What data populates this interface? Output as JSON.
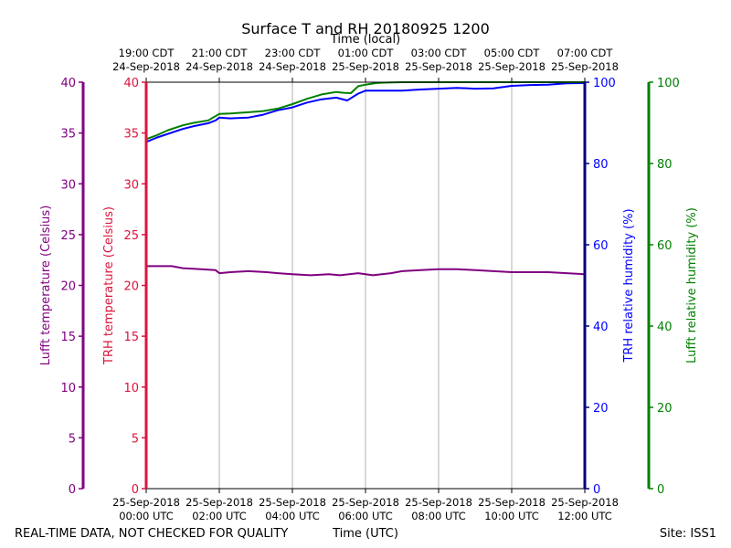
{
  "title": "Surface T and RH 20180925 1200",
  "footer": {
    "left": "REAL-TIME DATA, NOT CHECKED FOR QUALITY",
    "center": "Time (UTC)",
    "right": "Site: ISS1"
  },
  "colors": {
    "lufft_temp": "#800080",
    "trh_temp": "#dc143c",
    "trh_rh": "#0000ff",
    "lufft_rh": "#008000",
    "axis_dark": "#000080",
    "grid": "#b0b0b0"
  },
  "chart_data": {
    "type": "line",
    "title": "Surface T and RH 20180925 1200",
    "x_range_utc_hours": [
      0,
      12
    ],
    "top_axis_label": "Time (local)",
    "bottom_axis_label": "Time (UTC)",
    "top_ticks": [
      {
        "t": 0,
        "line1": "19:00 CDT",
        "line2": "24-Sep-2018"
      },
      {
        "t": 2,
        "line1": "21:00 CDT",
        "line2": "24-Sep-2018"
      },
      {
        "t": 4,
        "line1": "23:00 CDT",
        "line2": "24-Sep-2018"
      },
      {
        "t": 6,
        "line1": "01:00 CDT",
        "line2": "25-Sep-2018"
      },
      {
        "t": 8,
        "line1": "03:00 CDT",
        "line2": "25-Sep-2018"
      },
      {
        "t": 10,
        "line1": "05:00 CDT",
        "line2": "25-Sep-2018"
      },
      {
        "t": 12,
        "line1": "07:00 CDT",
        "line2": "25-Sep-2018"
      }
    ],
    "bottom_ticks": [
      {
        "t": 0,
        "line1": "25-Sep-2018",
        "line2": "00:00 UTC"
      },
      {
        "t": 2,
        "line1": "25-Sep-2018",
        "line2": "02:00 UTC"
      },
      {
        "t": 4,
        "line1": "25-Sep-2018",
        "line2": "04:00 UTC"
      },
      {
        "t": 6,
        "line1": "25-Sep-2018",
        "line2": "06:00 UTC"
      },
      {
        "t": 8,
        "line1": "25-Sep-2018",
        "line2": "08:00 UTC"
      },
      {
        "t": 10,
        "line1": "25-Sep-2018",
        "line2": "10:00 UTC"
      },
      {
        "t": 12,
        "line1": "25-Sep-2018",
        "line2": "12:00 UTC"
      }
    ],
    "axes": {
      "lufft_temp": {
        "label": "Lufft temperature (Celsius)",
        "range": [
          0,
          40
        ],
        "ticks": [
          "0",
          "5",
          "10",
          "15",
          "20",
          "25",
          "30",
          "35",
          "40"
        ]
      },
      "trh_temp": {
        "label": "TRH temperature (Celsius)",
        "range": [
          0,
          40
        ],
        "ticks": [
          "0",
          "5",
          "10",
          "15",
          "20",
          "25",
          "30",
          "35",
          "40"
        ]
      },
      "trh_rh": {
        "label": "TRH relative humidity (%)",
        "range": [
          0,
          100
        ],
        "ticks": [
          "0",
          "20",
          "40",
          "60",
          "80",
          "100"
        ]
      },
      "lufft_rh": {
        "label": "Lufft relative humidity (%)",
        "range": [
          0,
          100
        ],
        "ticks": [
          "0",
          "20",
          "40",
          "60",
          "80",
          "100"
        ]
      }
    },
    "series": [
      {
        "name": "Lufft temperature",
        "axis": "lufft_temp",
        "color": "#800080",
        "t": [
          0,
          0.3,
          0.7,
          1.0,
          1.5,
          1.9,
          2.0,
          2.3,
          2.8,
          3.3,
          3.6,
          4.0,
          4.5,
          5.0,
          5.3,
          5.8,
          6.2,
          6.7,
          7.0,
          7.5,
          8.0,
          8.5,
          9.0,
          9.5,
          10.0,
          10.5,
          11.0,
          11.5,
          12.0
        ],
        "values": [
          21.9,
          21.9,
          21.9,
          21.7,
          21.6,
          21.5,
          21.2,
          21.3,
          21.4,
          21.3,
          21.2,
          21.1,
          21.0,
          21.1,
          21.0,
          21.2,
          21.0,
          21.2,
          21.4,
          21.5,
          21.6,
          21.6,
          21.5,
          21.4,
          21.3,
          21.3,
          21.3,
          21.2,
          21.1
        ]
      },
      {
        "name": "TRH relative humidity",
        "axis": "trh_rh",
        "color": "#0000ff",
        "t": [
          0,
          0.3,
          0.6,
          1.0,
          1.3,
          1.7,
          1.9,
          2.0,
          2.3,
          2.8,
          3.2,
          3.6,
          4.0,
          4.4,
          4.8,
          5.2,
          5.5,
          5.8,
          6.0,
          6.5,
          7.0,
          7.5,
          8.0,
          8.5,
          9.0,
          9.5,
          10.0,
          10.5,
          11.0,
          11.5,
          12.0
        ],
        "values": [
          85.3,
          86.4,
          87.3,
          88.5,
          89.2,
          89.9,
          90.6,
          91.3,
          91.1,
          91.3,
          92.0,
          93.1,
          93.8,
          95.0,
          95.8,
          96.2,
          95.5,
          97.2,
          97.9,
          97.9,
          97.9,
          98.2,
          98.4,
          98.6,
          98.4,
          98.5,
          99.1,
          99.3,
          99.4,
          99.7,
          99.8
        ]
      },
      {
        "name": "Lufft relative humidity",
        "axis": "lufft_rh",
        "color": "#008000",
        "t": [
          0,
          0.3,
          0.6,
          1.0,
          1.3,
          1.7,
          2.0,
          2.3,
          2.8,
          3.2,
          3.6,
          4.0,
          4.4,
          4.8,
          5.2,
          5.4,
          5.6,
          5.8,
          6.0,
          6.3,
          6.6,
          7.0,
          8.0,
          9.0,
          10.0,
          11.0,
          12.0
        ],
        "values": [
          86.0,
          87.0,
          88.2,
          89.4,
          90.0,
          90.6,
          92.2,
          92.3,
          92.6,
          92.9,
          93.5,
          94.6,
          95.9,
          97.0,
          97.6,
          97.4,
          97.3,
          99.0,
          99.4,
          99.8,
          99.9,
          100,
          100,
          100,
          100,
          100,
          100
        ]
      }
    ]
  }
}
